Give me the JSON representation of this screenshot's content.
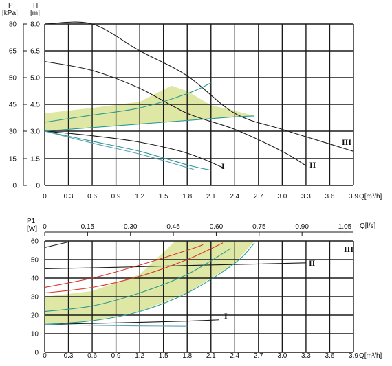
{
  "chart_data": [
    {
      "type": "line",
      "x_axis": {
        "label": "Q[m³/h]",
        "range": [
          0,
          3.9
        ],
        "ticks": [
          "0",
          "0.3",
          "0.6",
          "0.9",
          "1.2",
          "1.5",
          "1.8",
          "2.1",
          "2.4",
          "2.7",
          "3.0",
          "3.3",
          "3.6",
          "3.9"
        ]
      },
      "y_axis_left": {
        "label_top": "P",
        "label_bottom": "[kPa]",
        "ticks": [
          "0",
          "15",
          "30",
          "45",
          "50",
          "65",
          "80"
        ]
      },
      "y_axis_right": {
        "label_top": "H",
        "label_bottom": "[m]",
        "range": [
          0,
          8.0
        ],
        "ticks": [
          "0",
          "1.5",
          "3.0",
          "4.5",
          "5.0",
          "6.5",
          "8.0"
        ]
      },
      "grid": true,
      "series": [
        {
          "name": "III",
          "color": "#1a1a1a",
          "x": [
            0,
            0.6,
            1.2,
            1.8,
            2.4,
            3.0,
            3.6,
            3.9
          ],
          "y": [
            8.0,
            8.0,
            6.5,
            5.1,
            4.0,
            3.1,
            2.3,
            1.9
          ]
        },
        {
          "name": "II",
          "color": "#1a1a1a",
          "x": [
            0,
            0.6,
            1.2,
            1.8,
            2.4,
            3.0,
            3.3
          ],
          "y": [
            5.9,
            5.4,
            4.8,
            4.0,
            3.1,
            1.9,
            1.1
          ]
        },
        {
          "name": "I",
          "color": "#1a1a1a",
          "x": [
            0,
            0.6,
            1.2,
            1.8,
            2.25
          ],
          "y": [
            3.0,
            2.75,
            2.4,
            1.8,
            1.0
          ]
        },
        {
          "color": "#2a9a92",
          "x": [
            0,
            0.6,
            1.2,
            1.8,
            2.1
          ],
          "y": [
            3.0,
            2.45,
            1.9,
            1.15,
            0.85
          ]
        },
        {
          "color": "#5aa0b4",
          "x": [
            0,
            0.6,
            1.2,
            1.8,
            1.88
          ],
          "y": [
            3.0,
            2.35,
            1.75,
            1.0,
            0.9
          ]
        },
        {
          "color": "#2a9a92",
          "x": [
            0,
            0.6,
            1.2,
            1.8,
            2.1
          ],
          "y": [
            3.5,
            3.9,
            4.3,
            4.7,
            4.9
          ]
        },
        {
          "color": "#2a9a92",
          "x": [
            0,
            0.6,
            1.2,
            1.8,
            2.4,
            2.65
          ],
          "y": [
            3.0,
            3.2,
            3.4,
            3.6,
            3.8,
            3.85
          ]
        }
      ],
      "shaded_region": {
        "color": "#dfe7a4",
        "x": [
          0,
          0.6,
          1.2,
          1.6,
          1.8,
          2.1,
          2.4,
          2.65,
          2.4,
          1.8,
          1.2,
          0.6,
          0
        ],
        "y": [
          4.0,
          4.3,
          4.55,
          4.85,
          4.75,
          4.45,
          4.15,
          3.85,
          3.8,
          3.6,
          3.4,
          3.2,
          3.0
        ]
      },
      "annotations": [
        "I",
        "II",
        "III"
      ]
    },
    {
      "type": "line",
      "x_axis": {
        "label": "Q[m³/h]",
        "range": [
          0,
          3.9
        ],
        "ticks": [
          "0",
          "0.3",
          "0.6",
          "0.9",
          "1.2",
          "1.5",
          "1.8",
          "2.1",
          "2.4",
          "2.7",
          "3.0",
          "3.3",
          "3.6",
          "3.9"
        ]
      },
      "x_axis_top": {
        "label": "Q[l/s]",
        "range": [
          0,
          1.08
        ],
        "ticks": [
          "0",
          "0.15",
          "0.30",
          "0.45",
          "0.60",
          "0.75",
          "0.90",
          "1.05"
        ]
      },
      "y_axis": {
        "label_top": "P1",
        "label_bottom": "[W]",
        "range": [
          0,
          60
        ],
        "ticks": [
          "0",
          "10",
          "20",
          "30",
          "40",
          "50",
          "60"
        ]
      },
      "grid": true,
      "series": [
        {
          "name": "III",
          "color": "#1a1a1a",
          "x": [
            0,
            0.3
          ],
          "y": [
            56.5,
            59.5
          ]
        },
        {
          "name": "II",
          "color": "#1a1a1a",
          "x": [
            0,
            0.9,
            1.8,
            2.7,
            3.3
          ],
          "y": [
            45,
            45.8,
            46.8,
            47.6,
            48.2
          ]
        },
        {
          "name": "I",
          "color": "#1a1a1a",
          "x": [
            0,
            0.9,
            1.8,
            2.2
          ],
          "y": [
            15,
            15.8,
            16.8,
            17.5
          ]
        },
        {
          "color": "#d8382c",
          "x": [
            0,
            0.6,
            1.2,
            1.8,
            2.0
          ],
          "y": [
            35,
            40,
            47,
            55,
            58
          ]
        },
        {
          "color": "#d8382c",
          "x": [
            0,
            0.6,
            1.2,
            1.8,
            2.25
          ],
          "y": [
            32,
            35,
            41,
            50,
            59
          ]
        },
        {
          "color": "#2a9a92",
          "x": [
            0,
            0.6,
            1.2,
            1.8,
            2.35
          ],
          "y": [
            22,
            25,
            32,
            42,
            56
          ]
        },
        {
          "color": "#2a9a92",
          "x": [
            0,
            0.6,
            1.2,
            1.8,
            2.4,
            2.65
          ],
          "y": [
            15,
            17,
            22,
            32,
            48,
            59
          ]
        },
        {
          "color": "#5aa0b4",
          "x": [
            0,
            0.6,
            1.2,
            1.8
          ],
          "y": [
            15,
            14.5,
            14.2,
            14
          ]
        }
      ],
      "shaded_region": {
        "color": "#dfe7a4",
        "x": [
          0,
          0.6,
          1.2,
          1.65,
          2.65,
          2.4,
          1.8,
          1.2,
          0.6,
          0
        ],
        "y": [
          30,
          33,
          42,
          60,
          60,
          48,
          32,
          22,
          17,
          15
        ]
      },
      "annotations": [
        "I",
        "II",
        "III"
      ]
    }
  ]
}
